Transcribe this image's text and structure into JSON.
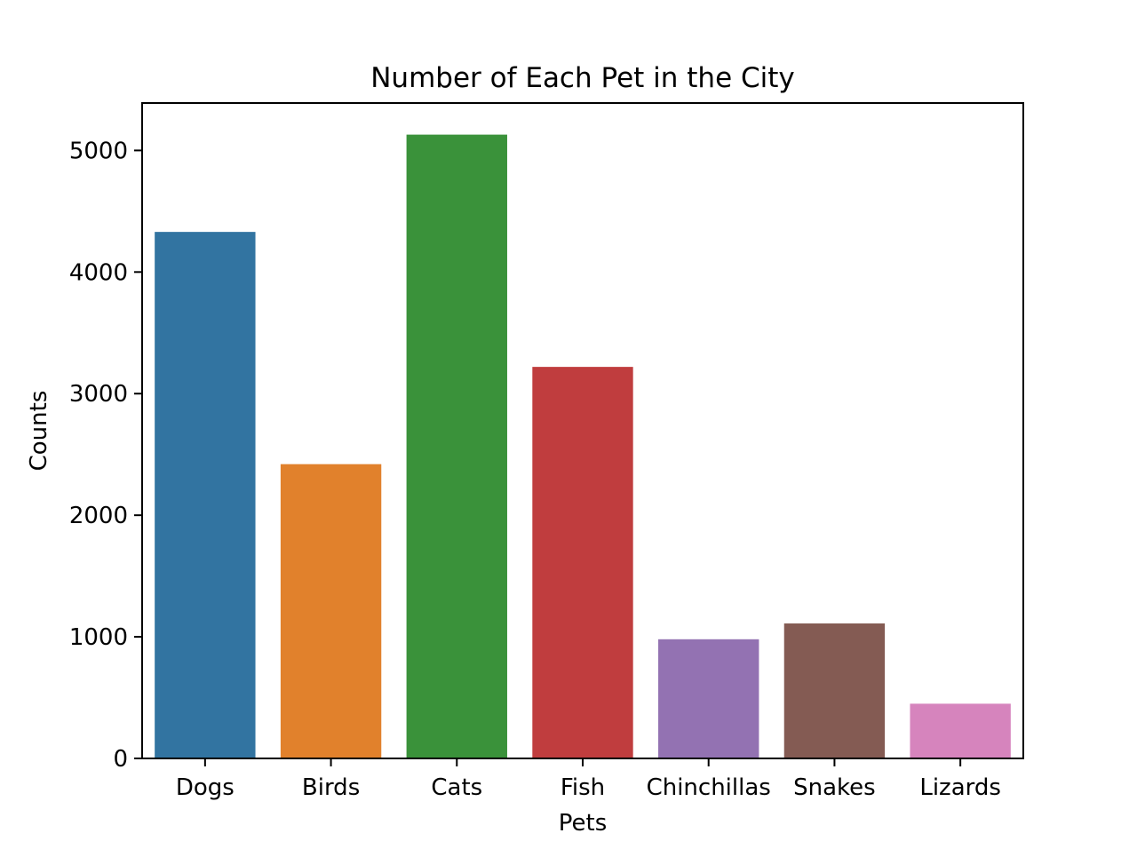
{
  "chart_data": {
    "type": "bar",
    "title": "Number of Each Pet in the City",
    "xlabel": "Pets",
    "ylabel": "Counts",
    "categories": [
      "Dogs",
      "Birds",
      "Cats",
      "Fish",
      "Chinchillas",
      "Snakes",
      "Lizards"
    ],
    "values": [
      4330,
      2420,
      5130,
      3220,
      980,
      1110,
      450
    ],
    "colors": [
      "#3274a1",
      "#e1812c",
      "#3a923a",
      "#c03d3e",
      "#9372b2",
      "#845b53",
      "#d684bd"
    ],
    "ylim": [
      0,
      5390
    ],
    "yticks": [
      0,
      1000,
      2000,
      3000,
      4000,
      5000
    ],
    "grid": false,
    "legend": "none"
  }
}
